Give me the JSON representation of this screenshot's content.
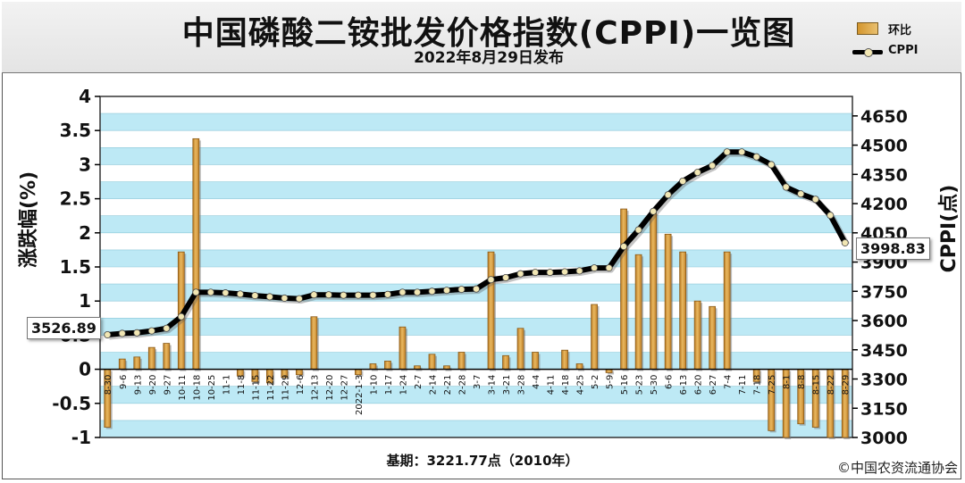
{
  "header": {
    "title": "中国磷酸二铵批发价格指数(CPPI)一览图",
    "subtitle": "2022年8月29日发布"
  },
  "legend": {
    "bar_label": "环比",
    "line_label": "CPPI"
  },
  "axes": {
    "left_label": "涨跌幅(%)",
    "right_label": "CPPI(点)"
  },
  "footer": {
    "base": "基期：3221.77点（2010年）",
    "copyright": "©中国农资流通协会"
  },
  "callouts": {
    "first": "3526.89",
    "last": "3998.83"
  },
  "colors": {
    "plot_band_a": "#ffffff",
    "plot_band_b": "#bde9f5",
    "bar_fill": "#d99a3a",
    "bar_edge": "#8a5a18",
    "line": "#000000",
    "marker": "#f1e6b3"
  },
  "chart_data": {
    "type": "bar+line",
    "categories": [
      "8-30",
      "9-6",
      "9-13",
      "9-20",
      "9-27",
      "10-11",
      "10-18",
      "10-25",
      "11-1",
      "11-8",
      "11-15",
      "11-22",
      "11-29",
      "12-6",
      "12-13",
      "12-20",
      "12-27",
      "2022-1-3",
      "1-10",
      "1-17",
      "1-24",
      "2-7",
      "2-14",
      "2-21",
      "2-28",
      "3-7",
      "3-14",
      "3-21",
      "3-28",
      "4-4",
      "4-11",
      "4-18",
      "4-25",
      "5-2",
      "5-9",
      "5-16",
      "5-23",
      "5-30",
      "6-6",
      "6-13",
      "6-20",
      "6-27",
      "7-4",
      "7-11",
      "7-18",
      "7-25",
      "8-1",
      "8-8",
      "8-15",
      "8-22",
      "8-29"
    ],
    "series": [
      {
        "name": "环比",
        "axis": "left",
        "type": "bar",
        "values": [
          -0.85,
          0.15,
          0.18,
          0.32,
          0.38,
          1.72,
          3.38,
          0.0,
          0.0,
          -0.1,
          -0.18,
          -0.2,
          -0.12,
          -0.08,
          0.77,
          0.0,
          0.0,
          -0.08,
          0.08,
          0.12,
          0.62,
          0.05,
          0.22,
          0.05,
          0.25,
          0.0,
          1.72,
          0.2,
          0.6,
          0.25,
          0.0,
          0.28,
          0.08,
          0.95,
          -0.05,
          2.35,
          1.68,
          2.3,
          1.98,
          1.72,
          1.0,
          0.92,
          1.72,
          0.0,
          -0.18,
          -0.9,
          -1.0,
          -0.8,
          -0.85,
          -1.0,
          -1.0
        ]
      },
      {
        "name": "CPPI",
        "axis": "right",
        "type": "line",
        "values": [
          3526.89,
          3534,
          3537,
          3547,
          3560,
          3620,
          3745,
          3745,
          3742,
          3736,
          3728,
          3722,
          3715,
          3712,
          3732,
          3732,
          3730,
          3730,
          3730,
          3734,
          3745,
          3745,
          3750,
          3755,
          3760,
          3762,
          3810,
          3820,
          3840,
          3847,
          3847,
          3850,
          3855,
          3870,
          3870,
          3980,
          4065,
          4160,
          4245,
          4315,
          4360,
          4395,
          4465,
          4465,
          4440,
          4400,
          4285,
          4250,
          4222,
          4140,
          3998.83
        ]
      }
    ],
    "left_ylim": [
      -1,
      4
    ],
    "left_ticks": [
      "4",
      "3.5",
      "3",
      "2.5",
      "2",
      "1.5",
      "1",
      "0.5",
      "0",
      "-0.5",
      "-1"
    ],
    "right_ylim": [
      3000,
      4750
    ],
    "right_ticks": [
      "4650",
      "4500",
      "4350",
      "4200",
      "4050",
      "3900",
      "3750",
      "3600",
      "3450",
      "3300",
      "3150",
      "3000"
    ],
    "grid": true
  }
}
